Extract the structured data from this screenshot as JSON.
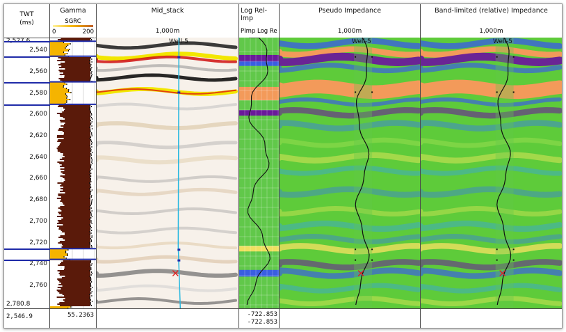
{
  "time_axis": {
    "header_line1": "TWT",
    "header_line2": "(ms)",
    "top_value": "2,527.6",
    "bottom_value": "2,780.8",
    "ticks": [
      "2,540",
      "2,560",
      "2,580",
      "2,600",
      "2,620",
      "2,640",
      "2,660",
      "2,680",
      "2,700",
      "2,720",
      "2,740",
      "2,760"
    ],
    "footer_value": "2,546.9"
  },
  "gamma": {
    "title": "Gamma",
    "curve": "SGRC",
    "scale_min": "0",
    "scale_max": "200",
    "footer_value": "55.2363"
  },
  "mid_stack": {
    "title": "Mid_stack",
    "subtitle": "1,000m",
    "well": "Well-5"
  },
  "log_rel": {
    "title": "Log Rel-Imp",
    "subheader": "PImp Log Re",
    "footer_value1": "-722.853",
    "footer_value2": "-722.853"
  },
  "pseudo": {
    "title": "Pseudo Impedance",
    "subtitle": "1,000m",
    "well": "Well-5"
  },
  "band": {
    "title": "Band-limited (relative) Impedance",
    "subtitle": "1,000m",
    "well": "Well-5"
  },
  "colors": {
    "seismic_peak": "#f2e600",
    "seismic_trough": "#1a1a1a",
    "gamma_sand": "#f5b400",
    "gamma_shale": "#5a1a0a",
    "horizon_line": "#1e2aa8",
    "well_track": "#28b8e0",
    "imp_high": "#f39a5a",
    "imp_low": "#6a1a9a",
    "imp_mid": "#5ecb3a",
    "imp_blue": "#3a5fe0"
  }
}
